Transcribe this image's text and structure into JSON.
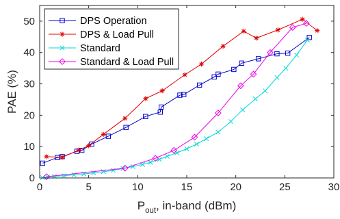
{
  "chart_data": {
    "type": "line",
    "xlabel": "P_out, in-band (dBm)",
    "xlabel_main": "P",
    "xlabel_sub": "out",
    "xlabel_rest": ", in-band (dBm)",
    "ylabel": "PAE (%)",
    "xlim": [
      0,
      30
    ],
    "ylim": [
      0,
      55
    ],
    "xticks": [
      0,
      5,
      10,
      15,
      20,
      25,
      30
    ],
    "yticks": [
      0,
      10,
      20,
      30,
      40,
      50
    ],
    "grid": false,
    "legend_position": "top-left",
    "series": [
      {
        "name": "DPS Operation",
        "color": "#0000cc",
        "marker": "square",
        "x": [
          0.3,
          1.8,
          2.3,
          3.8,
          4.3,
          5.3,
          7.0,
          8.8,
          10.8,
          12.3,
          12.4,
          14.3,
          14.7,
          16.3,
          17.8,
          18.2,
          19.8,
          20.6,
          22.3,
          24.2,
          25.3,
          27.5
        ],
        "y": [
          4.7,
          6.5,
          6.8,
          8.5,
          8.8,
          10.8,
          13.3,
          16.1,
          19.6,
          21.0,
          22.6,
          26.4,
          26.6,
          29.6,
          32.2,
          33.1,
          34.6,
          36.6,
          38.0,
          39.6,
          39.8,
          44.8
        ]
      },
      {
        "name": "DPS & Load Pull",
        "color": "#e00000",
        "marker": "asterisk",
        "x": [
          0.7,
          2.3,
          4.0,
          5.0,
          6.5,
          8.7,
          10.8,
          12.5,
          14.8,
          16.5,
          18.7,
          20.8,
          22.1,
          24.3,
          26.8,
          28.3
        ],
        "y": [
          6.8,
          6.6,
          8.9,
          10.3,
          13.9,
          19.0,
          25.3,
          27.8,
          32.9,
          36.3,
          42.0,
          46.8,
          44.6,
          47.2,
          50.6,
          47.0
        ]
      },
      {
        "name": "Standard",
        "color": "#00d8d8",
        "marker": "x",
        "x": [
          0.3,
          0.8,
          1.5,
          2.5,
          3.5,
          4.5,
          5.5,
          6.5,
          7.5,
          8.5,
          9.5,
          10.5,
          11.3,
          12.2,
          13.0,
          14.0,
          15.0,
          16.0,
          17.0,
          18.2,
          19.5,
          20.7,
          22.0,
          23.0,
          24.2,
          25.1,
          26.2,
          27.3
        ],
        "y": [
          0.1,
          0.3,
          0.5,
          0.7,
          1.0,
          1.3,
          1.6,
          2.0,
          2.4,
          3.0,
          3.6,
          4.3,
          5.0,
          5.9,
          6.9,
          8.0,
          9.3,
          10.8,
          12.5,
          14.6,
          18.0,
          21.7,
          25.2,
          27.8,
          32.0,
          35.0,
          39.2,
          44.0
        ]
      },
      {
        "name": "Standard & Load Pull",
        "color": "#ee00ee",
        "marker": "diamond",
        "x": [
          0.7,
          8.7,
          11.8,
          13.7,
          15.8,
          18.2,
          20.5,
          21.8,
          23.5,
          25.8,
          27.2
        ],
        "y": [
          0.4,
          3.1,
          6.3,
          8.8,
          13.0,
          20.7,
          29.4,
          33.1,
          40.0,
          48.0,
          49.3
        ]
      }
    ]
  }
}
